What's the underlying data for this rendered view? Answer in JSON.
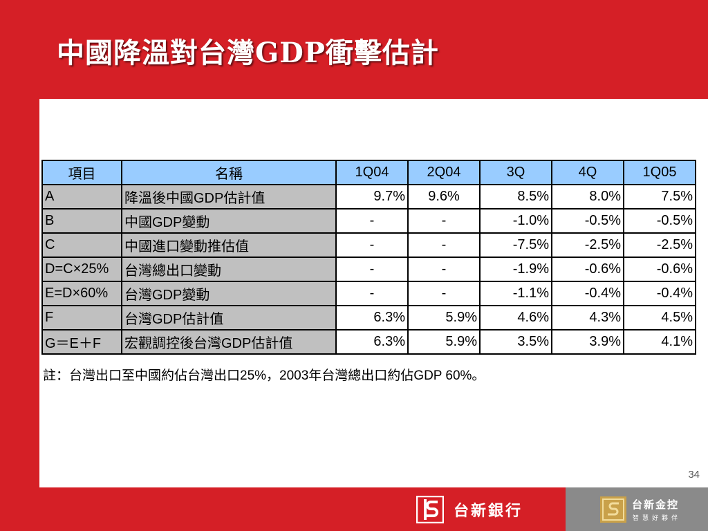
{
  "title": "中國降溫對台灣GDP衝擊估計",
  "table": {
    "headers": [
      "項目",
      "名稱",
      "1Q04",
      "2Q04",
      "3Q",
      "4Q",
      "1Q05"
    ],
    "rows": [
      {
        "item": "A",
        "name": "降溫後中國GDP估計值",
        "values": [
          "9.7%",
          "9.6%",
          "8.5%",
          "8.0%",
          "7.5%"
        ]
      },
      {
        "item": "B",
        "name": "中國GDP變動",
        "values": [
          "-",
          "-",
          "-1.0%",
          "-0.5%",
          "-0.5%"
        ]
      },
      {
        "item": "C",
        "name": "中國進口變動推估值",
        "values": [
          "-",
          "-",
          "-7.5%",
          "-2.5%",
          "-2.5%"
        ]
      },
      {
        "item": "D=C×25%",
        "name": "台灣總出口變動",
        "values": [
          "-",
          "-",
          "-1.9%",
          "-0.6%",
          "-0.6%"
        ]
      },
      {
        "item": "E=D×60%",
        "name": "台灣GDP變動",
        "values": [
          "-",
          "-",
          "-1.1%",
          "-0.4%",
          "-0.4%"
        ]
      },
      {
        "item": "F",
        "name": "台灣GDP估計值",
        "values": [
          "6.3%",
          "5.9%",
          "4.6%",
          "4.3%",
          "4.5%"
        ]
      },
      {
        "item": "G＝E＋F",
        "name": "宏觀調控後台灣GDP估計值",
        "values": [
          "6.3%",
          "5.9%",
          "3.5%",
          "3.9%",
          "4.1%"
        ]
      }
    ]
  },
  "note": "註：台灣出口至中國約佔台灣出口25%，2003年台灣總出口約佔GDP 60%。",
  "page_number": "34",
  "footer": {
    "bank_name": "台新銀行",
    "holding_name": "台新金控",
    "holding_slogan": "智慧好夥伴"
  },
  "colors": {
    "background": "#d51f26",
    "header_fill": "#99ccff",
    "label_fill": "#c0c0c0",
    "footer_gray": "#8a8a8a"
  }
}
